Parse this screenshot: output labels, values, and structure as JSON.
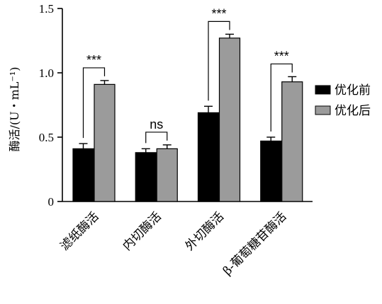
{
  "chart_data": {
    "type": "bar",
    "ylabel": "酶活/(U・mL⁻¹)",
    "xlabel": "",
    "ylim": [
      0,
      1.5
    ],
    "yticks": [
      "0",
      "0.5",
      "1.0",
      "1.5"
    ],
    "categories": [
      "滤纸酶活",
      "内切酶活",
      "外切酶活",
      "β-葡萄糖苷酶活"
    ],
    "series": [
      {
        "name": "优化前",
        "color": "#000000",
        "values": [
          0.41,
          0.38,
          0.69,
          0.47
        ],
        "errors": [
          0.04,
          0.03,
          0.05,
          0.03
        ]
      },
      {
        "name": "优化后",
        "color": "#9b9b9b",
        "values": [
          0.91,
          0.41,
          1.27,
          0.93
        ],
        "errors": [
          0.03,
          0.03,
          0.03,
          0.04
        ]
      }
    ],
    "significance": [
      "***",
      "ns",
      "***",
      "***"
    ],
    "legend": {
      "position": "right"
    },
    "grid": false
  }
}
